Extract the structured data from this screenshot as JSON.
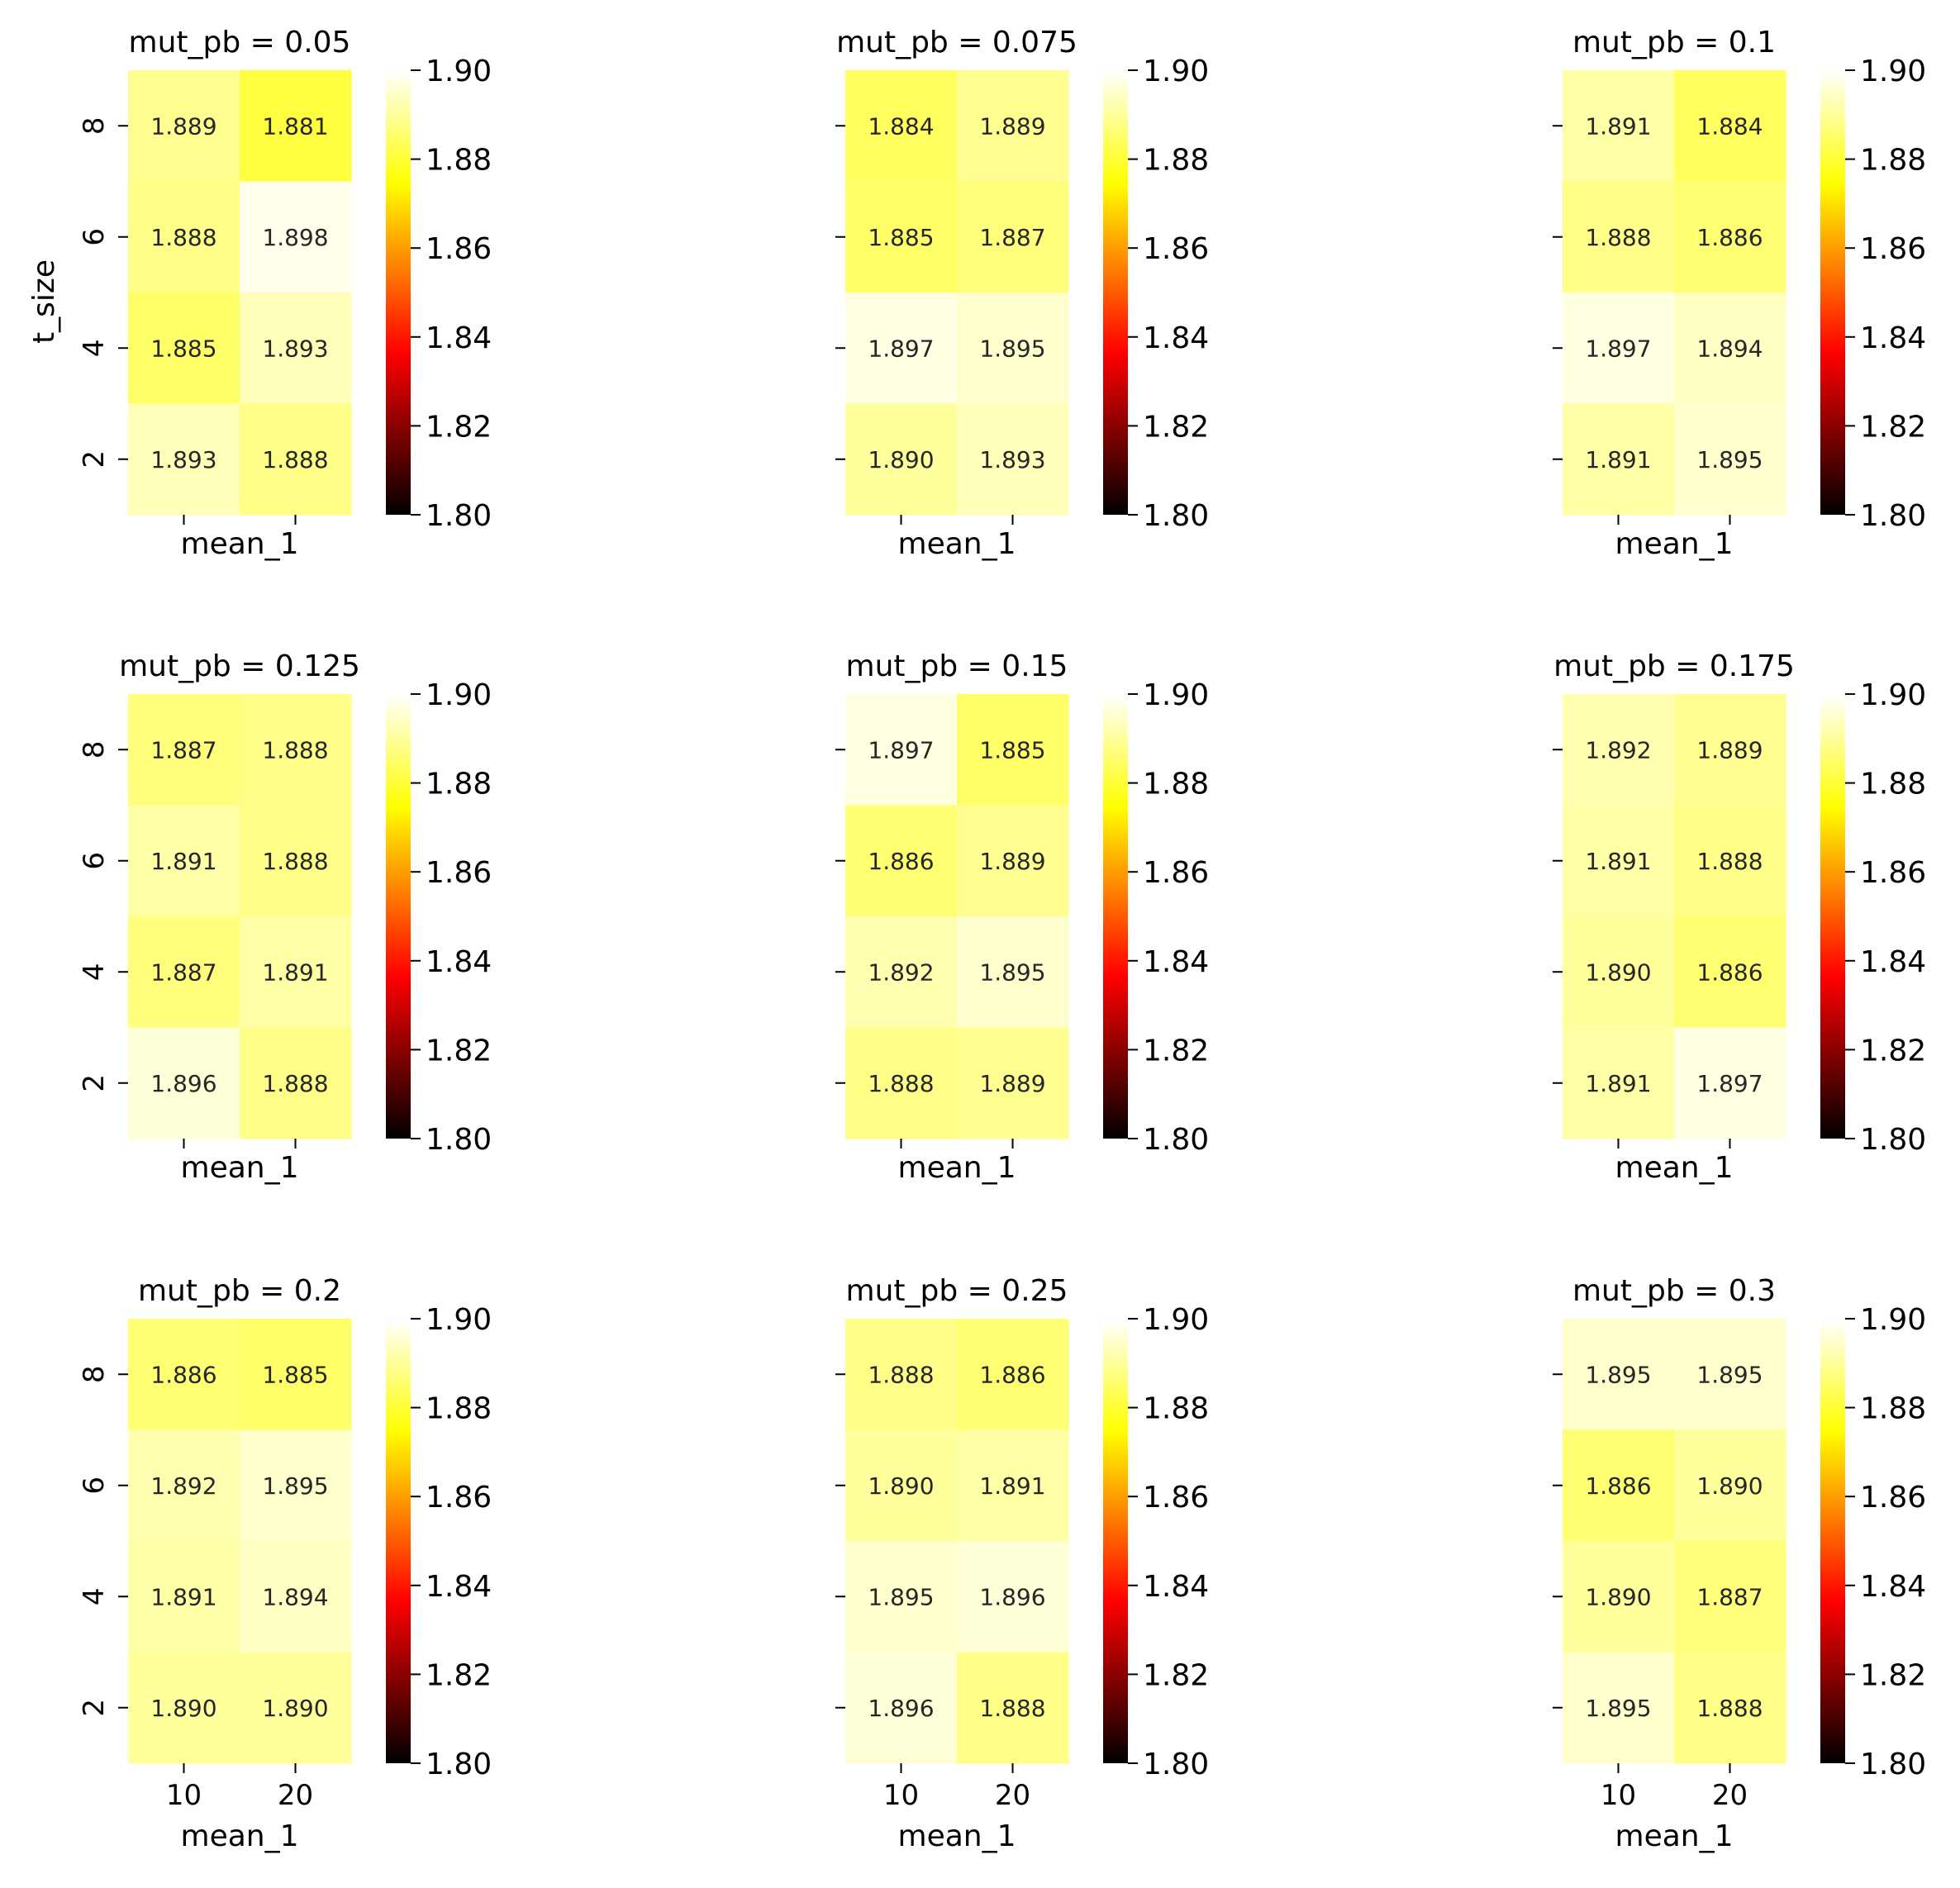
{
  "chart_data": {
    "type": "heatmap",
    "colormap": "hot",
    "color_range": [
      1.8,
      1.9
    ],
    "colorbar_ticks": [
      "1.80",
      "1.82",
      "1.84",
      "1.86",
      "1.88",
      "1.90"
    ],
    "panels": [
      {
        "title": "mut_pb = 0.05",
        "xlabel": "mean_1",
        "ylabel": "t_size",
        "x": [
          "10",
          "20"
        ],
        "y": [
          "8",
          "6",
          "4",
          "2"
        ],
        "values": [
          [
            1.889,
            1.881
          ],
          [
            1.888,
            1.898
          ],
          [
            1.885,
            1.893
          ],
          [
            1.893,
            1.888
          ]
        ]
      },
      {
        "title": "mut_pb = 0.075",
        "xlabel": "mean_1",
        "ylabel": "",
        "x": [
          "10",
          "20"
        ],
        "y": [
          "8",
          "6",
          "4",
          "2"
        ],
        "values": [
          [
            1.884,
            1.889
          ],
          [
            1.885,
            1.887
          ],
          [
            1.897,
            1.895
          ],
          [
            1.89,
            1.893
          ]
        ]
      },
      {
        "title": "mut_pb = 0.1",
        "xlabel": "mean_1",
        "ylabel": "",
        "x": [
          "10",
          "20"
        ],
        "y": [
          "8",
          "6",
          "4",
          "2"
        ],
        "values": [
          [
            1.891,
            1.884
          ],
          [
            1.888,
            1.886
          ],
          [
            1.897,
            1.894
          ],
          [
            1.891,
            1.895
          ]
        ]
      },
      {
        "title": "mut_pb = 0.125",
        "xlabel": "mean_1",
        "ylabel": "",
        "x": [
          "10",
          "20"
        ],
        "y": [
          "8",
          "6",
          "4",
          "2"
        ],
        "values": [
          [
            1.887,
            1.888
          ],
          [
            1.891,
            1.888
          ],
          [
            1.887,
            1.891
          ],
          [
            1.896,
            1.888
          ]
        ]
      },
      {
        "title": "mut_pb = 0.15",
        "xlabel": "mean_1",
        "ylabel": "",
        "x": [
          "10",
          "20"
        ],
        "y": [
          "8",
          "6",
          "4",
          "2"
        ],
        "values": [
          [
            1.897,
            1.885
          ],
          [
            1.886,
            1.889
          ],
          [
            1.892,
            1.895
          ],
          [
            1.888,
            1.889
          ]
        ]
      },
      {
        "title": "mut_pb = 0.175",
        "xlabel": "mean_1",
        "ylabel": "",
        "x": [
          "10",
          "20"
        ],
        "y": [
          "8",
          "6",
          "4",
          "2"
        ],
        "values": [
          [
            1.892,
            1.889
          ],
          [
            1.891,
            1.888
          ],
          [
            1.89,
            1.886
          ],
          [
            1.891,
            1.897
          ]
        ]
      },
      {
        "title": "mut_pb = 0.2",
        "xlabel": "mean_1",
        "ylabel": "",
        "x": [
          "10",
          "20"
        ],
        "y": [
          "8",
          "6",
          "4",
          "2"
        ],
        "values": [
          [
            1.886,
            1.885
          ],
          [
            1.892,
            1.895
          ],
          [
            1.891,
            1.894
          ],
          [
            1.89,
            1.89
          ]
        ]
      },
      {
        "title": "mut_pb = 0.25",
        "xlabel": "mean_1",
        "ylabel": "",
        "x": [
          "10",
          "20"
        ],
        "y": [
          "8",
          "6",
          "4",
          "2"
        ],
        "values": [
          [
            1.888,
            1.886
          ],
          [
            1.89,
            1.891
          ],
          [
            1.895,
            1.896
          ],
          [
            1.896,
            1.888
          ]
        ]
      },
      {
        "title": "mut_pb = 0.3",
        "xlabel": "mean_1",
        "ylabel": "",
        "x": [
          "10",
          "20"
        ],
        "y": [
          "8",
          "6",
          "4",
          "2"
        ],
        "values": [
          [
            1.895,
            1.895
          ],
          [
            1.886,
            1.89
          ],
          [
            1.89,
            1.887
          ],
          [
            1.895,
            1.888
          ]
        ]
      }
    ]
  }
}
